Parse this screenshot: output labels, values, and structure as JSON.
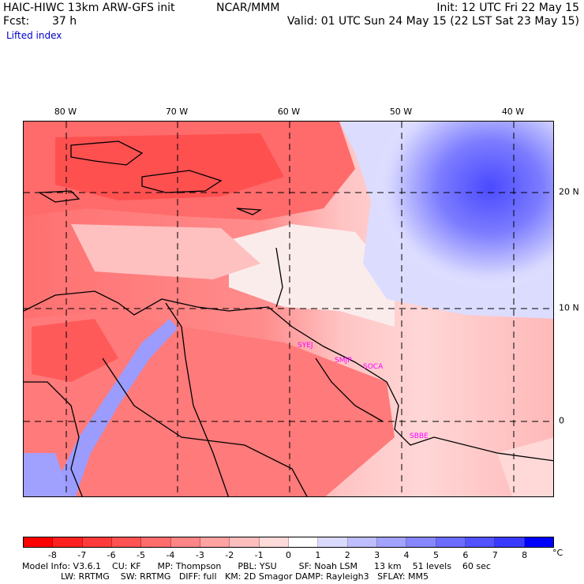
{
  "header": {
    "model": "HAIC-HIWC 13km ARW-GFS init",
    "org": "NCAR/MMM",
    "init": "Init: 12 UTC Fri 22 May 15",
    "fcst_label": "Fcst:",
    "fcst_value": "37 h",
    "valid": "Valid: 01 UTC Sun 24 May 15 (22 LST Sat 23 May 15)",
    "field": "Lifted index"
  },
  "map": {
    "lon_labels": [
      "80 W",
      "70 W",
      "60 W",
      "50 W",
      "40 W"
    ],
    "lat_labels": [
      "20 N",
      "10 N",
      "0"
    ],
    "stations": [
      "SYEJ",
      "SMJP",
      "SOCA",
      "SBBE"
    ]
  },
  "colorbar": {
    "ticks": [
      "-8",
      "-7",
      "-6",
      "-5",
      "-4",
      "-3",
      "-2",
      "-1",
      "0",
      "1",
      "2",
      "3",
      "4",
      "5",
      "6",
      "7",
      "8"
    ],
    "unit": "°C",
    "colors": [
      "#ff0000",
      "#ff2020",
      "#ff3a3a",
      "#ff5252",
      "#ff6c6c",
      "#ff8686",
      "#ffa2a2",
      "#ffbebe",
      "#ffdada",
      "#ffffff",
      "#dadaff",
      "#bebeff",
      "#a2a2ff",
      "#8686ff",
      "#6c6cff",
      "#5252ff",
      "#3a3aff",
      "#0000ff"
    ]
  },
  "footer": {
    "line1": "Model Info: V3.6.1    CU: KF      MP: Thompson      PBL: YSU        SF: Noah LSM      13 km    51 levels    60 sec",
    "line2": "              LW: RRTMG    SW: RRTMG   DIFF: full   KM: 2D Smagor DAMP: Rayleigh3   SFLAY: MM5"
  }
}
